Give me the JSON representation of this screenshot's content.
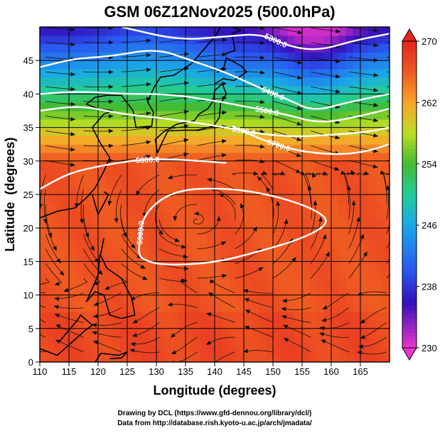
{
  "chart_data": {
    "type": "heatmap",
    "title": "GSM 06Z12Nov2025 (500.0hPa)",
    "xlabel": "Longitude (degrees)",
    "ylabel": "Latitude  (degrees)",
    "xlim": [
      110,
      170
    ],
    "ylim": [
      0,
      50
    ],
    "xticks": [
      "110",
      "115",
      "120",
      "125",
      "130",
      "135",
      "140",
      "145",
      "150",
      "155",
      "160",
      "165"
    ],
    "yticks": [
      "0",
      "5",
      "10",
      "15",
      "20",
      "25",
      "30",
      "35",
      "40",
      "45"
    ],
    "colorbar": {
      "ticks": [
        "230",
        "238",
        "246",
        "254",
        "262",
        "270"
      ],
      "min": 230,
      "max": 270,
      "stops": [
        {
          "value": 230,
          "color": "#ee33cc"
        },
        {
          "value": 236,
          "color": "#3311bb"
        },
        {
          "value": 240,
          "color": "#2a55f0"
        },
        {
          "value": 246,
          "color": "#1aa8e8"
        },
        {
          "value": 250,
          "color": "#22cc99"
        },
        {
          "value": 254,
          "color": "#44bb33"
        },
        {
          "value": 258,
          "color": "#bbdd22"
        },
        {
          "value": 262,
          "color": "#f8a52a"
        },
        {
          "value": 266,
          "color": "#ef5a22"
        },
        {
          "value": 270,
          "color": "#e52422"
        }
      ]
    },
    "contours": [
      {
        "label": "5300.0",
        "points": [
          [
            124,
            50
          ],
          [
            134,
            48
          ],
          [
            142,
            48.6
          ],
          [
            148,
            49
          ],
          [
            153,
            47
          ],
          [
            158,
            46.5
          ],
          [
            164,
            48
          ],
          [
            170,
            49
          ]
        ]
      },
      {
        "label": "5400.0",
        "points": [
          [
            110,
            44
          ],
          [
            116,
            45.3
          ],
          [
            122,
            45.6
          ],
          [
            130,
            46.8
          ],
          [
            136,
            45
          ],
          [
            142,
            43.2
          ],
          [
            147,
            41.2
          ],
          [
            153,
            39
          ],
          [
            157,
            37.4
          ],
          [
            163,
            38.8
          ],
          [
            170,
            40
          ]
        ]
      },
      {
        "label": "5500.0",
        "points": [
          [
            110,
            40
          ],
          [
            117,
            40.4
          ],
          [
            124,
            40
          ],
          [
            132,
            40
          ],
          [
            140,
            39
          ],
          [
            146,
            38
          ],
          [
            152,
            37
          ],
          [
            158,
            35.6
          ],
          [
            164,
            36.5
          ],
          [
            170,
            37.8
          ]
        ]
      },
      {
        "label": "5600.0",
        "points": [
          [
            110,
            37.5
          ],
          [
            117,
            38.3
          ],
          [
            124,
            37
          ],
          [
            130,
            36.5
          ],
          [
            136,
            35.8
          ],
          [
            142,
            35
          ],
          [
            148,
            34
          ],
          [
            154,
            33.6
          ],
          [
            160,
            33.9
          ],
          [
            166,
            34.3
          ],
          [
            170,
            35
          ]
        ]
      },
      {
        "label": "5700.0",
        "points": [
          [
            143,
            35.2
          ],
          [
            148,
            33.2
          ],
          [
            154,
            31.5
          ],
          [
            161,
            30.9
          ],
          [
            166,
            31.4
          ],
          [
            170,
            32.5
          ]
        ]
      },
      {
        "label": "5800.0",
        "points": [
          [
            110,
            25.8
          ],
          [
            115,
            28.2
          ],
          [
            120,
            29.2
          ],
          [
            126,
            30.1
          ],
          [
            131,
            30.3
          ],
          [
            136,
            30.1
          ],
          [
            142,
            29.7
          ]
        ]
      }
    ],
    "closed_contour": {
      "label": "5900.0",
      "points": [
        [
          127,
          16.6
        ],
        [
          127.5,
          22
        ],
        [
          133,
          25.7
        ],
        [
          142,
          26
        ],
        [
          150,
          24.9
        ],
        [
          157,
          22.9
        ],
        [
          160,
          20.8
        ],
        [
          155,
          18.4
        ],
        [
          148,
          16.6
        ],
        [
          140,
          14.8
        ],
        [
          131,
          14.4
        ],
        [
          127.3,
          15.4
        ]
      ]
    },
    "annotations": {
      "credit_line1": "Drawing by DCL (https://www.gfd-dennou.org/library/dcl/)",
      "credit_line2": "Data from http://database.rish.kyoto-u.ac.jp/arch/jmadata/"
    }
  }
}
